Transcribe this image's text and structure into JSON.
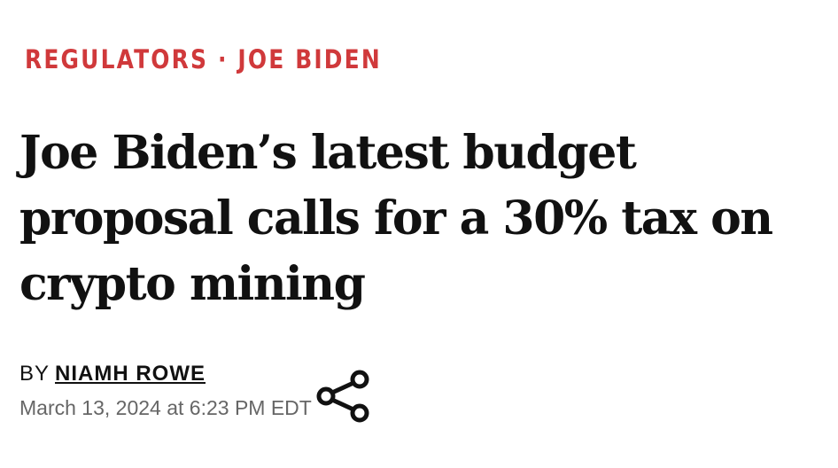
{
  "kicker": {
    "section": "REGULATORS",
    "separator": " · ",
    "topic": "JOE BIDEN"
  },
  "headline": "Joe Biden’s latest budget proposal calls for a 30% tax on crypto mining",
  "byline": {
    "prefix": "BY",
    "author": "NIAMH ROWE"
  },
  "date": "March 13, 2024 at 6:23 PM EDT",
  "colors": {
    "accent": "#d0393b"
  }
}
